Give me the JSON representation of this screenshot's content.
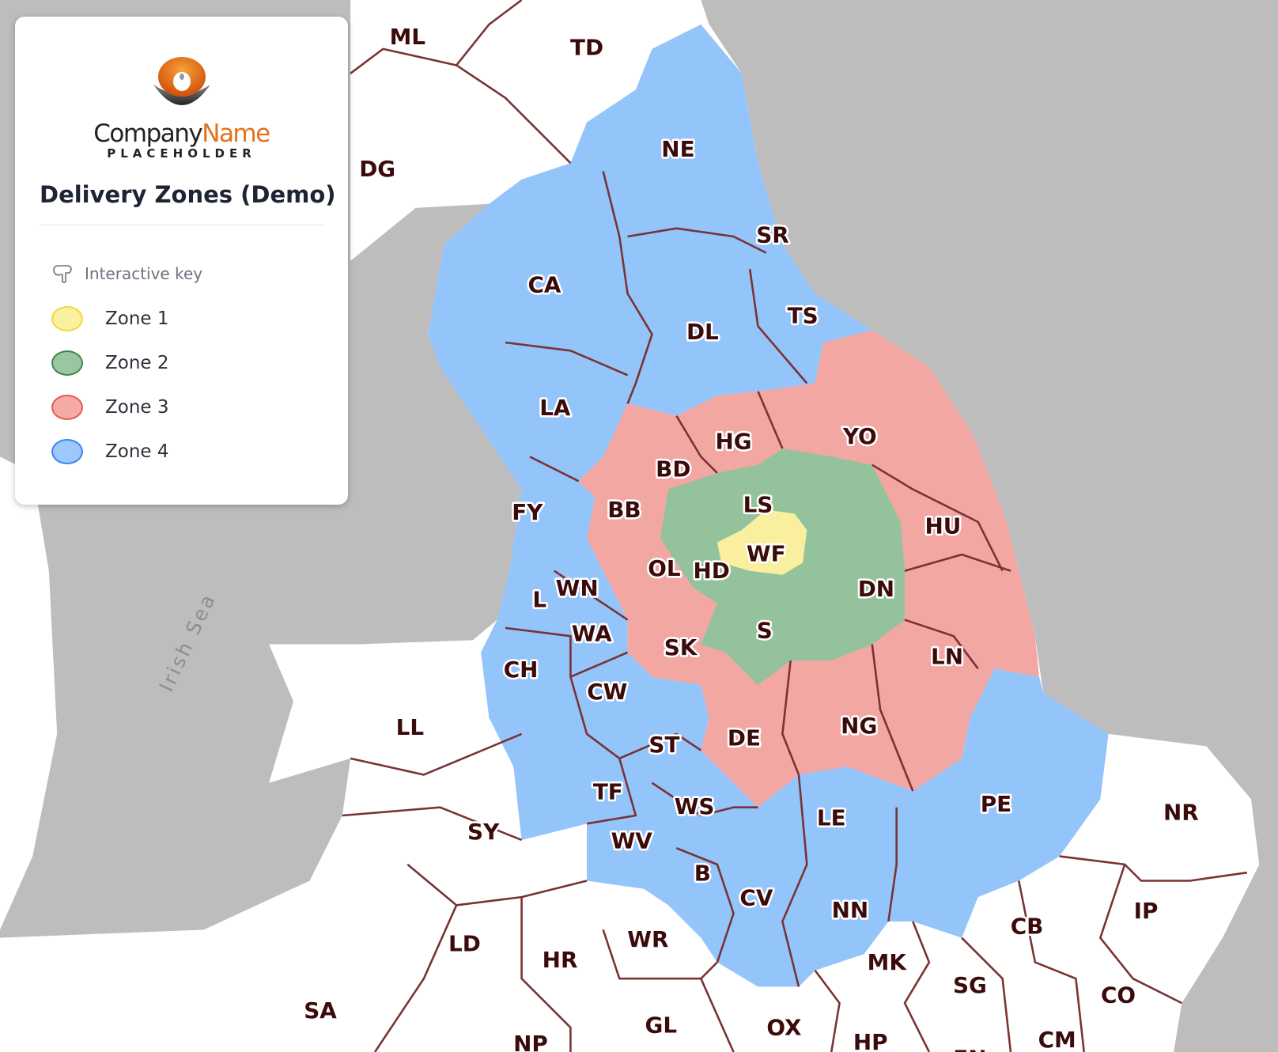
{
  "legend": {
    "logo": {
      "word_dark": "Company",
      "word_accent": "Name",
      "subtitle": "PLACEHOLDER"
    },
    "title": "Delivery Zones (Demo)",
    "key_heading": "Interactive key",
    "key_icon": "pointing-hand-icon",
    "zones": [
      {
        "label": "Zone 1",
        "fill": "#f9f0a0",
        "stroke": "#f2d93a"
      },
      {
        "label": "Zone 2",
        "fill": "#9cc5a1",
        "stroke": "#3f8a4a"
      },
      {
        "label": "Zone 3",
        "fill": "#f4aaa6",
        "stroke": "#e55b50"
      },
      {
        "label": "Zone 4",
        "fill": "#9ec7fb",
        "stroke": "#3b86f0"
      }
    ]
  },
  "map": {
    "sea_label": "Irish Sea",
    "colors": {
      "sea": "#bdbdbd",
      "land": "#ffffff",
      "boundary": "#7a3232",
      "zone1": "#f9ef9e",
      "zone2": "#93c29c",
      "zone3": "#f2a7a3",
      "zone4": "#93c4fa"
    },
    "postcode_areas": [
      "ML",
      "TD",
      "NE",
      "DG",
      "SR",
      "CA",
      "TS",
      "DL",
      "LA",
      "YO",
      "HG",
      "BD",
      "LS",
      "FY",
      "BB",
      "HU",
      "WF",
      "OL",
      "HD",
      "DN",
      "WN",
      "L",
      "WA",
      "S",
      "SK",
      "LN",
      "CH",
      "CW",
      "NG",
      "LL",
      "DE",
      "ST",
      "TF",
      "WS",
      "PE",
      "NR",
      "LE",
      "SY",
      "WV",
      "B",
      "CV",
      "NN",
      "IP",
      "CB",
      "WR",
      "LD",
      "HR",
      "MK",
      "SG",
      "CO",
      "SA",
      "GL",
      "OX",
      "NP",
      "HP",
      "CM",
      "EN"
    ]
  }
}
